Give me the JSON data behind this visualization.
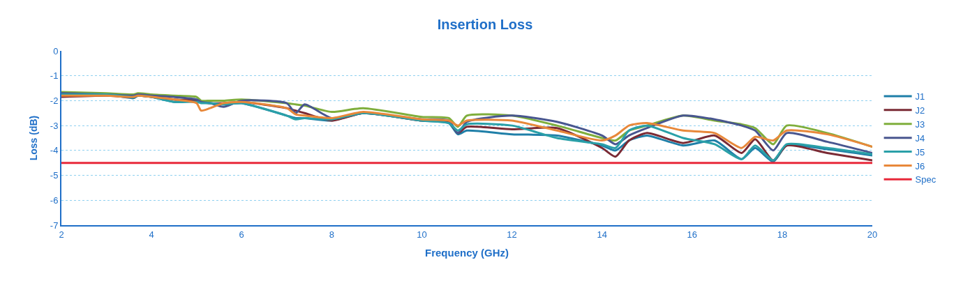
{
  "chart_data": {
    "type": "line",
    "title": "Insertion Loss",
    "xlabel": "Frequency (GHz)",
    "ylabel": "Loss (dB)",
    "x": [
      2,
      3,
      3.6,
      3.7,
      4,
      4.5,
      5,
      5.1,
      5.3,
      5.6,
      6,
      7,
      7.2,
      7.4,
      8,
      8.7,
      10,
      10.6,
      10.8,
      11,
      12,
      13,
      14,
      14.3,
      14.6,
      15,
      15.8,
      16.5,
      17.1,
      17.4,
      17.8,
      18.1,
      19,
      20
    ],
    "series": [
      {
        "name": "J1",
        "color": "#1f7fa8",
        "values": [
          -1.75,
          -1.75,
          -1.9,
          -1.8,
          -1.85,
          -2.05,
          -2.0,
          -2.05,
          -2.1,
          -2.15,
          -2.1,
          -2.6,
          -2.7,
          -2.7,
          -2.8,
          -2.5,
          -2.8,
          -2.9,
          -3.35,
          -3.2,
          -3.35,
          -3.4,
          -3.8,
          -4.0,
          -3.6,
          -3.4,
          -3.8,
          -3.6,
          -4.35,
          -3.9,
          -4.45,
          -3.8,
          -3.95,
          -4.2
        ]
      },
      {
        "name": "J2",
        "color": "#7a2a34",
        "values": [
          -1.85,
          -1.8,
          -1.85,
          -1.8,
          -1.85,
          -1.95,
          -2.0,
          -2.05,
          -2.1,
          -2.1,
          -2.05,
          -2.3,
          -2.4,
          -2.5,
          -2.8,
          -2.5,
          -2.8,
          -2.85,
          -3.3,
          -3.05,
          -3.15,
          -3.1,
          -3.9,
          -4.25,
          -3.6,
          -3.3,
          -3.7,
          -3.4,
          -4.1,
          -3.55,
          -4.4,
          -3.8,
          -4.1,
          -4.4
        ]
      },
      {
        "name": "J3",
        "color": "#7fae3c",
        "values": [
          -1.65,
          -1.7,
          -1.75,
          -1.7,
          -1.75,
          -1.8,
          -1.85,
          -2.0,
          -2.0,
          -2.0,
          -1.95,
          -2.1,
          -2.15,
          -2.2,
          -2.45,
          -2.3,
          -2.65,
          -2.7,
          -3.05,
          -2.6,
          -2.6,
          -3.0,
          -3.5,
          -3.6,
          -3.2,
          -3.0,
          -2.6,
          -2.8,
          -2.95,
          -3.1,
          -3.75,
          -3.0,
          -3.3,
          -3.85
        ]
      },
      {
        "name": "J4",
        "color": "#48568f",
        "values": [
          -1.7,
          -1.75,
          -1.8,
          -1.75,
          -1.8,
          -1.85,
          -1.95,
          -2.05,
          -2.1,
          -2.25,
          -2.0,
          -2.1,
          -2.5,
          -2.15,
          -2.7,
          -2.5,
          -2.75,
          -2.8,
          -3.3,
          -2.85,
          -2.6,
          -2.85,
          -3.4,
          -3.75,
          -3.4,
          -3.1,
          -2.6,
          -2.75,
          -3.0,
          -3.2,
          -4.0,
          -3.3,
          -3.65,
          -4.1
        ]
      },
      {
        "name": "J5",
        "color": "#2aa0a8",
        "values": [
          -1.75,
          -1.75,
          -1.85,
          -1.8,
          -1.85,
          -2.05,
          -2.05,
          -2.1,
          -2.1,
          -2.15,
          -2.1,
          -2.6,
          -2.75,
          -2.7,
          -2.75,
          -2.5,
          -2.8,
          -2.9,
          -3.2,
          -2.95,
          -3.0,
          -3.5,
          -3.75,
          -3.9,
          -3.2,
          -3.0,
          -3.5,
          -3.75,
          -4.35,
          -3.8,
          -4.4,
          -3.75,
          -3.9,
          -4.15
        ]
      },
      {
        "name": "J6",
        "color": "#e8883a",
        "values": [
          -1.8,
          -1.8,
          -1.85,
          -1.8,
          -1.85,
          -1.95,
          -2.1,
          -2.4,
          -2.3,
          -2.1,
          -2.05,
          -2.3,
          -2.55,
          -2.6,
          -2.7,
          -2.45,
          -2.75,
          -2.8,
          -3.0,
          -2.8,
          -2.8,
          -3.2,
          -3.6,
          -3.4,
          -3.0,
          -2.9,
          -3.2,
          -3.3,
          -3.9,
          -3.45,
          -3.6,
          -3.2,
          -3.35,
          -3.85
        ]
      },
      {
        "name": "Spec",
        "color": "#e8283a",
        "x": [
          2,
          20
        ],
        "values": [
          -4.5,
          -4.5
        ]
      }
    ],
    "xlim": [
      2,
      20
    ],
    "xticks": [
      2,
      4,
      6,
      8,
      10,
      12,
      14,
      16,
      18,
      20
    ],
    "ylim": [
      -7,
      0
    ],
    "yticks": [
      -7,
      -6,
      -5,
      -4,
      -3,
      -2,
      -1,
      0
    ],
    "grid": "y",
    "legend": "right",
    "line_style": "solid",
    "marker": "none"
  }
}
